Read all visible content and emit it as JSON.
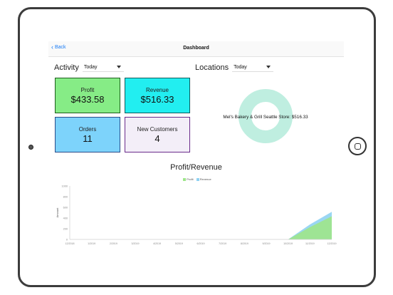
{
  "nav": {
    "back_label": "Back",
    "title": "Dashboard"
  },
  "activity": {
    "label": "Activity",
    "filter": "Today"
  },
  "locations": {
    "label": "Locations",
    "filter": "Today"
  },
  "cards": [
    {
      "label": "Profit",
      "value": "$433.58",
      "bg": "#86ec86"
    },
    {
      "label": "Revenue",
      "value": "$516.33",
      "bg": "#22eef0"
    },
    {
      "label": "Orders",
      "value": "11",
      "bg": "#7dd3fb"
    },
    {
      "label": "New Customers",
      "value": "4",
      "bg": "#f3eef8"
    }
  ],
  "donut": {
    "label": "Mel's Bakery & Grill Seattle Store: $516.33",
    "color": "#bfeee0"
  },
  "colors": {
    "profit": "#9ee68a",
    "revenue": "#8fd1f2",
    "accent": "#1a7cf5"
  },
  "chart_data": {
    "type": "area",
    "title": "Profit/Revenue",
    "ylabel": "Amount",
    "xlabel": "",
    "legend_position": "top-center",
    "x": [
      "12/2018",
      "1/2019",
      "2/2019",
      "3/2019",
      "4/2019",
      "5/2019",
      "6/2019",
      "7/2019",
      "8/2019",
      "9/2019",
      "10/2019",
      "11/2019",
      "12/2019"
    ],
    "ylim": [
      0,
      1000
    ],
    "y_ticks": [
      0,
      200,
      400,
      600,
      800,
      1000
    ],
    "grid": false,
    "series": [
      {
        "name": "Profit",
        "values": [
          0,
          0,
          0,
          0,
          0,
          0,
          0,
          0,
          0,
          0,
          0,
          230,
          433.58
        ]
      },
      {
        "name": "Revenue",
        "values": [
          0,
          0,
          0,
          0,
          0,
          0,
          0,
          0,
          0,
          0,
          0,
          280,
          516.33
        ]
      }
    ]
  }
}
